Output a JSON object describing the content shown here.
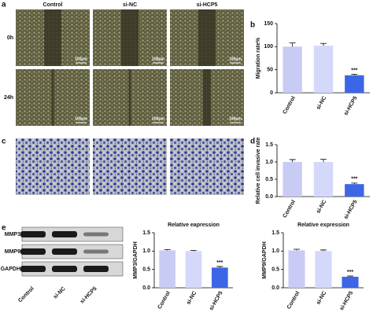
{
  "panel_labels": [
    "a",
    "b",
    "c",
    "d",
    "e"
  ],
  "images": {
    "columns": [
      "Control",
      "si-NC",
      "si-HCP5"
    ],
    "rows": [
      "0h",
      "24h"
    ],
    "scale_bar": "100μm"
  },
  "blot": {
    "bands": [
      "MMP3",
      "MMP9",
      "GAPDH"
    ],
    "lanes": [
      "Control",
      "si-NC",
      "si-HCP5"
    ]
  },
  "chart_data": [
    {
      "type": "bar",
      "y_label": "Migration rate%",
      "categories": [
        "Control",
        "si-NC",
        "si-HCP5"
      ],
      "values": [
        100,
        102,
        38
      ],
      "errors": [
        8,
        5,
        2
      ],
      "colors": [
        "#c8ccf4",
        "#d4d8fb",
        "#3d66e6"
      ],
      "ylim": [
        0,
        150
      ],
      "yticks": [
        0,
        50,
        100,
        150
      ],
      "annotation": "***"
    },
    {
      "type": "bar",
      "y_label": "Relative cell invasive rate",
      "categories": [
        "Control",
        "si-NC",
        "si-HCP5"
      ],
      "values": [
        1.0,
        1.0,
        0.36
      ],
      "errors": [
        0.07,
        0.08,
        0.03
      ],
      "colors": [
        "#c8ccf4",
        "#d4d8fb",
        "#3d66e6"
      ],
      "ylim": [
        0,
        1.5
      ],
      "yticks": [
        {
          "value": 0,
          "label": "0.0"
        },
        0.5,
        {
          "value": 1,
          "label": "1.0"
        },
        1.5
      ],
      "annotation": "***"
    },
    {
      "type": "bar",
      "title": "Relative eapression",
      "y_label": "MMP3/GAPDH",
      "categories": [
        "Control",
        "si-NC",
        "si-HCP5"
      ],
      "values": [
        1.02,
        1.0,
        0.55
      ],
      "errors": [
        0.02,
        0.02,
        0.03
      ],
      "colors": [
        "#c8ccf4",
        "#d4d8fb",
        "#3d66e6"
      ],
      "ylim": [
        0,
        1.5
      ],
      "yticks": [
        {
          "value": 0,
          "label": "0.0"
        },
        0.5,
        {
          "value": 1,
          "label": "1.0"
        },
        1.5
      ],
      "annotation": "***"
    },
    {
      "type": "bar",
      "title": "Relative expression",
      "y_label": "MMP9/GAPDH",
      "categories": [
        "Control",
        "si-NC",
        "si-HCP5"
      ],
      "values": [
        1.02,
        1.0,
        0.3
      ],
      "errors": [
        0.03,
        0.03,
        0.02
      ],
      "colors": [
        "#c8ccf4",
        "#d4d8fb",
        "#3d66e6"
      ],
      "ylim": [
        0,
        1.5
      ],
      "yticks": [
        {
          "value": 0,
          "label": "0.0"
        },
        0.5,
        {
          "value": 1,
          "label": "1.0"
        },
        1.5
      ],
      "annotation": "***"
    }
  ]
}
